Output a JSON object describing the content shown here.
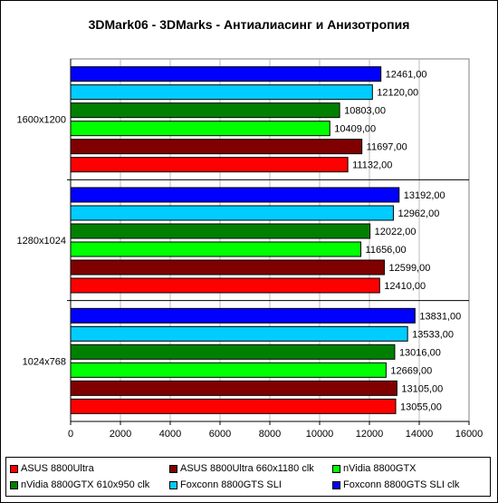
{
  "chart_data": {
    "type": "bar",
    "orientation": "horizontal",
    "title": "3DMark06 - 3DMarks - Антиалиасинг и Анизотропия",
    "categories": [
      "1600x1200",
      "1280x1024",
      "1024x768"
    ],
    "xlim": [
      0,
      16000
    ],
    "x_ticks": [
      "0",
      "2000",
      "4000",
      "6000",
      "8000",
      "10000",
      "12000",
      "14000",
      "16000"
    ],
    "grid": true,
    "legend_position": "bottom",
    "series": [
      {
        "name": "ASUS 8800Ultra",
        "color": "#ff0000",
        "values": [
          11132,
          12410,
          13055
        ],
        "labels": [
          "11132,00",
          "12410,00",
          "13055,00"
        ]
      },
      {
        "name": "ASUS 8800Ultra 660x1180 clk",
        "color": "#800000",
        "values": [
          11697,
          12599,
          13105
        ],
        "labels": [
          "11697,00",
          "12599,00",
          "13105,00"
        ]
      },
      {
        "name": "nVidia 8800GTX",
        "color": "#00ff00",
        "values": [
          10409,
          11656,
          12669
        ],
        "labels": [
          "10409,00",
          "11656,00",
          "12669,00"
        ]
      },
      {
        "name": "nVidia 8800GTX 610x950 clk",
        "color": "#008000",
        "values": [
          10803,
          12022,
          13016
        ],
        "labels": [
          "10803,00",
          "12022,00",
          "13016,00"
        ]
      },
      {
        "name": "Foxconn 8800GTS SLI",
        "color": "#00ccff",
        "values": [
          12120,
          12962,
          13533
        ],
        "labels": [
          "12120,00",
          "12962,00",
          "13533,00"
        ]
      },
      {
        "name": "Foxconn 8800GTS SLI clk",
        "color": "#0000ff",
        "values": [
          12461,
          13192,
          13831
        ],
        "labels": [
          "12461,00",
          "13192,00",
          "13831,00"
        ]
      }
    ]
  }
}
